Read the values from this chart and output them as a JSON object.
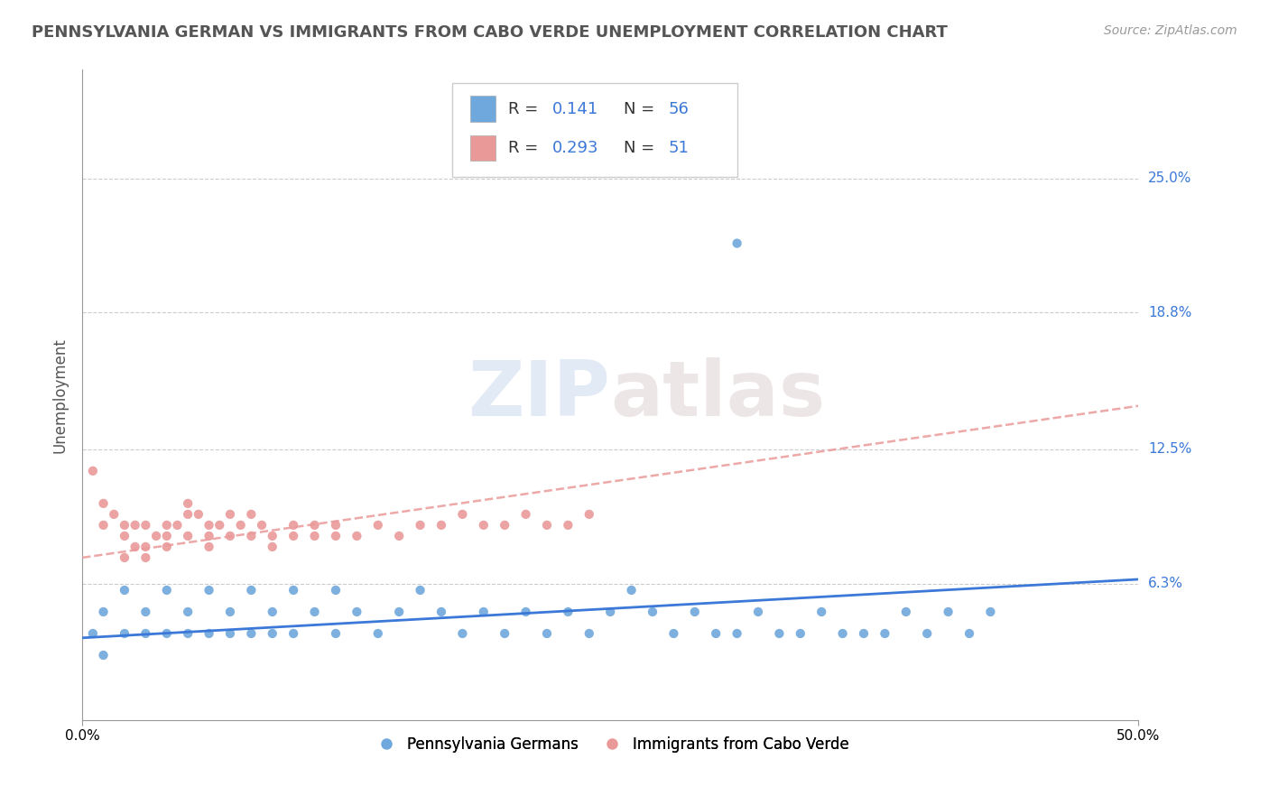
{
  "title": "PENNSYLVANIA GERMAN VS IMMIGRANTS FROM CABO VERDE UNEMPLOYMENT CORRELATION CHART",
  "source_text": "Source: ZipAtlas.com",
  "ylabel": "Unemployment",
  "xlim": [
    0.0,
    0.5
  ],
  "ylim": [
    0.0,
    0.3
  ],
  "ytick_positions": [
    0.063,
    0.125,
    0.188,
    0.25
  ],
  "ytick_labels": [
    "6.3%",
    "12.5%",
    "18.8%",
    "25.0%"
  ],
  "blue_color": "#6fa8dc",
  "pink_color": "#ea9999",
  "blue_line_color": "#3c78d8",
  "pink_line_color": "#e06666",
  "R_blue": 0.141,
  "N_blue": 56,
  "R_pink": 0.293,
  "N_pink": 51,
  "legend_label_blue": "Pennsylvania Germans",
  "legend_label_pink": "Immigrants from Cabo Verde",
  "watermark": "ZIPatlas",
  "blue_scatter_x": [
    0.005,
    0.01,
    0.01,
    0.02,
    0.02,
    0.03,
    0.03,
    0.04,
    0.04,
    0.05,
    0.05,
    0.06,
    0.06,
    0.07,
    0.07,
    0.08,
    0.08,
    0.09,
    0.09,
    0.1,
    0.1,
    0.11,
    0.12,
    0.12,
    0.13,
    0.14,
    0.15,
    0.16,
    0.17,
    0.18,
    0.19,
    0.2,
    0.21,
    0.22,
    0.23,
    0.24,
    0.25,
    0.26,
    0.27,
    0.28,
    0.29,
    0.3,
    0.31,
    0.32,
    0.33,
    0.34,
    0.35,
    0.36,
    0.37,
    0.38,
    0.39,
    0.4,
    0.41,
    0.42,
    0.43,
    0.31
  ],
  "blue_scatter_y": [
    0.04,
    0.05,
    0.03,
    0.06,
    0.04,
    0.05,
    0.04,
    0.06,
    0.04,
    0.05,
    0.04,
    0.06,
    0.04,
    0.05,
    0.04,
    0.06,
    0.04,
    0.05,
    0.04,
    0.06,
    0.04,
    0.05,
    0.06,
    0.04,
    0.05,
    0.04,
    0.05,
    0.06,
    0.05,
    0.04,
    0.05,
    0.04,
    0.05,
    0.04,
    0.05,
    0.04,
    0.05,
    0.06,
    0.05,
    0.04,
    0.05,
    0.04,
    0.04,
    0.05,
    0.04,
    0.04,
    0.05,
    0.04,
    0.04,
    0.04,
    0.05,
    0.04,
    0.05,
    0.04,
    0.05,
    0.22
  ],
  "pink_scatter_x": [
    0.005,
    0.01,
    0.01,
    0.015,
    0.02,
    0.02,
    0.02,
    0.025,
    0.025,
    0.03,
    0.03,
    0.03,
    0.035,
    0.04,
    0.04,
    0.04,
    0.045,
    0.05,
    0.05,
    0.05,
    0.055,
    0.06,
    0.06,
    0.06,
    0.065,
    0.07,
    0.07,
    0.075,
    0.08,
    0.08,
    0.085,
    0.09,
    0.09,
    0.1,
    0.1,
    0.11,
    0.11,
    0.12,
    0.12,
    0.13,
    0.14,
    0.15,
    0.16,
    0.17,
    0.18,
    0.19,
    0.2,
    0.21,
    0.22,
    0.23,
    0.24
  ],
  "pink_scatter_y": [
    0.115,
    0.1,
    0.09,
    0.095,
    0.09,
    0.085,
    0.075,
    0.09,
    0.08,
    0.09,
    0.08,
    0.075,
    0.085,
    0.09,
    0.085,
    0.08,
    0.09,
    0.1,
    0.095,
    0.085,
    0.095,
    0.09,
    0.085,
    0.08,
    0.09,
    0.095,
    0.085,
    0.09,
    0.095,
    0.085,
    0.09,
    0.085,
    0.08,
    0.09,
    0.085,
    0.085,
    0.09,
    0.09,
    0.085,
    0.085,
    0.09,
    0.085,
    0.09,
    0.09,
    0.095,
    0.09,
    0.09,
    0.095,
    0.09,
    0.09,
    0.095
  ],
  "blue_line_x": [
    0.0,
    0.5
  ],
  "blue_line_y_start": 0.038,
  "blue_line_y_end": 0.065,
  "pink_line_x_start": 0.0,
  "pink_line_x_end": 0.5,
  "pink_line_y_start": 0.075,
  "pink_line_y_end": 0.145
}
